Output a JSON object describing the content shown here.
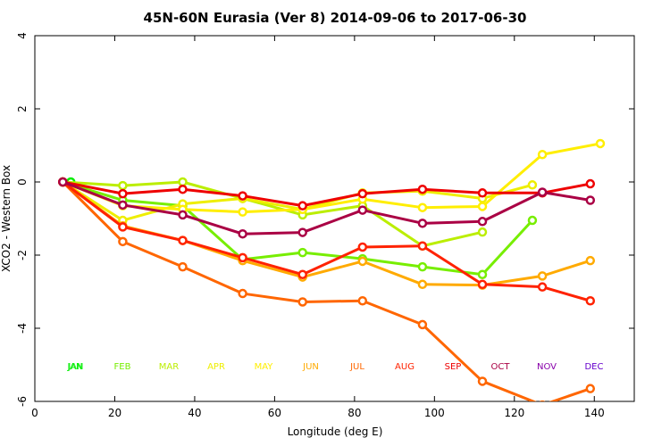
{
  "chart_data": {
    "type": "line",
    "title": "45N-60N Eurasia (Ver 8)   2014-09-06 to 2017-06-30",
    "xlabel": "Longitude (deg E)",
    "ylabel": "XCO2 - Western Box",
    "xlim": [
      0,
      150
    ],
    "ylim": [
      -6,
      4
    ],
    "xticks": [
      0,
      20,
      40,
      60,
      80,
      100,
      120,
      140
    ],
    "yticks": [
      -6,
      -4,
      -2,
      0,
      2,
      4
    ],
    "grid": false,
    "series": [
      {
        "name": "JAN",
        "color": "#00ee00",
        "x": [
          7,
          9
        ],
        "y": [
          0,
          0
        ]
      },
      {
        "name": "FEB",
        "color": "#77ee00",
        "x": [
          7,
          22,
          37,
          52,
          67,
          82,
          97,
          112,
          124.5
        ],
        "y": [
          0,
          -0.5,
          -0.65,
          -2.12,
          -1.93,
          -2.1,
          -2.32,
          -2.53,
          -1.05
        ]
      },
      {
        "name": "MAR",
        "color": "#bbee00",
        "x": [
          7,
          22,
          37,
          52,
          67,
          82,
          97,
          112
        ],
        "y": [
          0,
          -0.1,
          0,
          -0.45,
          -0.9,
          -0.65,
          -1.75,
          -1.37
        ]
      },
      {
        "name": "APR",
        "color": "#eeee00",
        "x": [
          7,
          22,
          37,
          52,
          67,
          82,
          97,
          112,
          124.5
        ],
        "y": [
          0,
          -1.05,
          -0.6,
          -0.45,
          -0.75,
          -0.3,
          -0.25,
          -0.45,
          -0.08
        ]
      },
      {
        "name": "MAY",
        "color": "#ffee00",
        "x": [
          7,
          22,
          37,
          52,
          67,
          82,
          97,
          112,
          127,
          141.5
        ],
        "y": [
          0,
          -0.65,
          -0.75,
          -0.82,
          -0.75,
          -0.47,
          -0.7,
          -0.67,
          0.75,
          1.05
        ]
      },
      {
        "name": "JUN",
        "color": "#ffaa00",
        "x": [
          7,
          22,
          37,
          52,
          67,
          82,
          97,
          112,
          127,
          139
        ],
        "y": [
          0,
          -1.2,
          -1.6,
          -2.15,
          -2.6,
          -2.17,
          -2.8,
          -2.82,
          -2.57,
          -2.15
        ]
      },
      {
        "name": "JUL",
        "color": "#ff6600",
        "x": [
          7,
          22,
          37,
          52,
          67,
          82,
          97,
          112,
          127,
          139
        ],
        "y": [
          0,
          -1.63,
          -2.32,
          -3.05,
          -3.28,
          -3.25,
          -3.9,
          -5.45,
          -6.1,
          -5.65
        ]
      },
      {
        "name": "AUG",
        "color": "#ff2200",
        "x": [
          7,
          22,
          37,
          52,
          67,
          82,
          97,
          112,
          127,
          139
        ],
        "y": [
          0,
          -1.23,
          -1.6,
          -2.07,
          -2.53,
          -1.78,
          -1.75,
          -2.8,
          -2.87,
          -3.25
        ]
      },
      {
        "name": "SEP",
        "color": "#ee0000",
        "x": [
          7,
          22,
          37,
          52,
          67,
          82,
          97,
          112,
          127,
          139
        ],
        "y": [
          0,
          -0.32,
          -0.2,
          -0.38,
          -0.65,
          -0.32,
          -0.2,
          -0.3,
          -0.3,
          -0.05
        ]
      },
      {
        "name": "OCT",
        "color": "#aa0044",
        "x": [
          7,
          22,
          37,
          52,
          67,
          82,
          97,
          112,
          127,
          139
        ],
        "y": [
          0,
          -0.63,
          -0.9,
          -1.42,
          -1.38,
          -0.77,
          -1.13,
          -1.08,
          -0.28,
          -0.5
        ]
      },
      {
        "name": "NOV",
        "color": "#8800aa",
        "x": [],
        "y": []
      },
      {
        "name": "DEC",
        "color": "#6600cc",
        "x": [],
        "y": []
      }
    ],
    "legend_placement": "bottom",
    "legend_colors": {
      "JAN": "#00ee00",
      "FEB": "#77ee00",
      "MAR": "#bbee00",
      "APR": "#eeee00",
      "MAY": "#ffee00",
      "JUN": "#ffaa00",
      "JUL": "#ff6600",
      "AUG": "#ff2200",
      "SEP": "#ee0000",
      "OCT": "#aa0044",
      "NOV": "#8800aa",
      "DEC": "#6600cc"
    }
  }
}
